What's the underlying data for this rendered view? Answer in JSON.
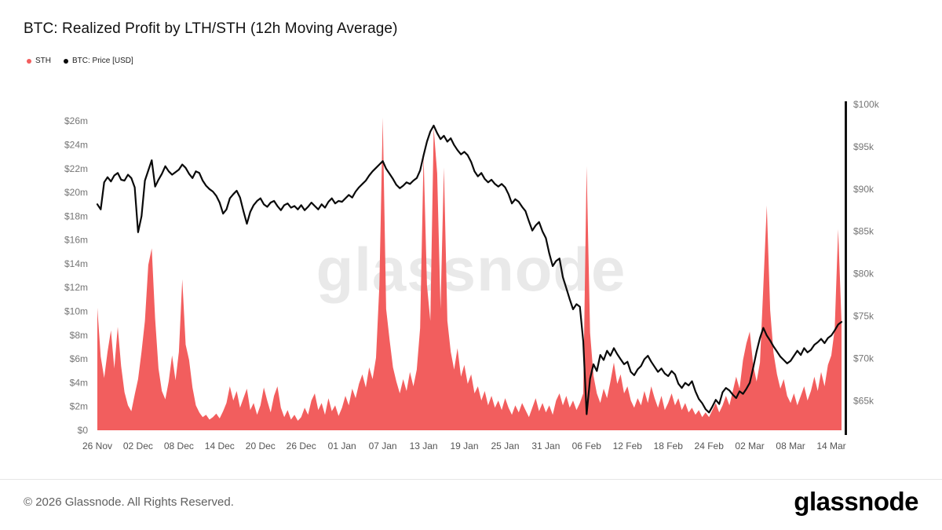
{
  "header": {
    "title": "BTC: Realized Profit by LTH/STH (12h Moving Average)"
  },
  "legend": [
    {
      "label": "STH",
      "color": "#f25e5e"
    },
    {
      "label": "BTC: Price [USD]",
      "color": "#0a0a0a"
    }
  ],
  "watermark": "glassnode",
  "footer": {
    "copyright": "© 2026 Glassnode. All Rights Reserved.",
    "brand": "glassnode"
  },
  "chart_data": {
    "type": "area+line",
    "title": "BTC: Realized Profit by LTH/STH (12h Moving Average)",
    "grid": false,
    "legend_position": "top-left",
    "x_tick_labels": [
      "26 Nov",
      "02 Dec",
      "08 Dec",
      "14 Dec",
      "20 Dec",
      "26 Dec",
      "01 Jan",
      "07 Jan",
      "13 Jan",
      "19 Jan",
      "25 Jan",
      "31 Jan",
      "06 Feb",
      "12 Feb",
      "18 Feb",
      "24 Feb",
      "02 Mar",
      "08 Mar",
      "14 Mar"
    ],
    "points_per_day": 2,
    "left_axis": {
      "ticks": [
        "$0",
        "$2m",
        "$4m",
        "$6m",
        "$8m",
        "$10m",
        "$12m",
        "$14m",
        "$16m",
        "$18m",
        "$20m",
        "$22m",
        "$24m",
        "$26m"
      ],
      "tick_values_m": [
        0,
        2,
        4,
        6,
        8,
        10,
        12,
        14,
        16,
        18,
        20,
        22,
        24,
        26
      ],
      "min_m": 0,
      "max_m": 27.4
    },
    "right_axis": {
      "ticks": [
        "$65k",
        "$70k",
        "$75k",
        "$80k",
        "$85k",
        "$90k",
        "$95k",
        "$100k"
      ],
      "tick_values_k": [
        65,
        70,
        75,
        80,
        85,
        90,
        95,
        100
      ],
      "min_k": 61.5,
      "max_k": 100
    },
    "series": [
      {
        "name": "STH",
        "type": "area",
        "axis": "left",
        "unit": "USD millions",
        "color": "#f25e5e",
        "values": [
          10.3,
          6.2,
          4.4,
          6.6,
          8.4,
          5.2,
          8.7,
          5.4,
          3.2,
          2.1,
          1.6,
          3.0,
          4.3,
          6.6,
          9.2,
          13.9,
          15.3,
          9.4,
          5.2,
          3.3,
          2.6,
          4.1,
          6.3,
          4.2,
          6.6,
          12.7,
          7.2,
          5.9,
          3.6,
          2.1,
          1.5,
          1.1,
          1.3,
          0.9,
          1.1,
          1.4,
          1.0,
          1.6,
          2.3,
          3.7,
          2.5,
          3.3,
          1.9,
          2.7,
          3.5,
          1.7,
          2.3,
          1.3,
          2.1,
          3.6,
          2.5,
          1.5,
          2.9,
          3.7,
          1.9,
          1.1,
          1.7,
          0.9,
          1.3,
          0.8,
          1.1,
          1.9,
          1.3,
          2.5,
          3.1,
          1.7,
          2.3,
          1.3,
          2.7,
          1.6,
          2.1,
          1.2,
          1.9,
          2.9,
          2.1,
          3.5,
          2.7,
          3.9,
          4.7,
          3.6,
          5.3,
          4.3,
          6.1,
          12.2,
          26.3,
          10.2,
          7.6,
          5.3,
          4.1,
          3.1,
          4.3,
          3.3,
          4.9,
          3.7,
          5.1,
          8.6,
          23.1,
          12.2,
          9.2,
          25.4,
          21.6,
          10.2,
          22.1,
          9.2,
          6.6,
          5.1,
          6.9,
          4.5,
          5.5,
          3.9,
          4.7,
          3.1,
          3.7,
          2.5,
          3.3,
          2.1,
          2.9,
          1.9,
          2.5,
          1.7,
          2.7,
          1.9,
          1.3,
          2.1,
          1.5,
          2.3,
          1.7,
          1.1,
          1.9,
          2.7,
          1.6,
          2.3,
          1.5,
          2.1,
          1.3,
          2.5,
          3.1,
          2.1,
          2.9,
          1.9,
          2.5,
          1.7,
          2.3,
          3.1,
          22.2,
          8.2,
          4.6,
          3.1,
          2.3,
          3.5,
          2.7,
          4.1,
          5.7,
          3.9,
          4.7,
          3.1,
          3.7,
          2.5,
          1.9,
          2.7,
          2.1,
          3.3,
          2.3,
          3.7,
          2.7,
          1.9,
          2.9,
          1.7,
          2.3,
          3.1,
          2.1,
          2.7,
          1.7,
          2.3,
          1.5,
          1.9,
          1.3,
          1.7,
          1.1,
          1.5,
          1.1,
          1.7,
          2.3,
          1.5,
          2.1,
          2.9,
          2.1,
          3.3,
          4.5,
          3.5,
          5.9,
          7.3,
          8.3,
          5.5,
          4.1,
          5.7,
          12.1,
          18.9,
          10.1,
          6.5,
          4.7,
          3.5,
          4.3,
          2.9,
          2.3,
          3.1,
          2.1,
          2.9,
          3.7,
          2.5,
          3.3,
          4.5,
          3.3,
          4.9,
          3.7,
          5.5,
          6.3,
          8.5,
          16.9,
          9.1
        ]
      },
      {
        "name": "BTC: Price [USD]",
        "type": "line",
        "axis": "right",
        "unit": "USD thousands",
        "color": "#0a0a0a",
        "values": [
          88.2,
          87.6,
          90.8,
          91.4,
          90.9,
          91.6,
          91.9,
          91.1,
          91.0,
          91.7,
          91.3,
          90.2,
          84.9,
          86.8,
          91.0,
          92.2,
          93.4,
          90.3,
          91.1,
          91.8,
          92.7,
          92.1,
          91.7,
          92.0,
          92.3,
          92.9,
          92.5,
          91.8,
          91.3,
          92.1,
          91.9,
          91.0,
          90.4,
          90.0,
          89.7,
          89.2,
          88.4,
          87.1,
          87.6,
          88.9,
          89.4,
          89.8,
          89.0,
          87.4,
          85.9,
          87.3,
          88.1,
          88.6,
          88.9,
          88.2,
          87.9,
          88.4,
          88.6,
          88.0,
          87.5,
          88.1,
          88.3,
          87.8,
          88.0,
          87.6,
          88.1,
          87.5,
          87.9,
          88.4,
          88.0,
          87.6,
          88.2,
          87.8,
          88.5,
          88.9,
          88.3,
          88.6,
          88.5,
          88.9,
          89.3,
          89.0,
          89.7,
          90.2,
          90.6,
          91.0,
          91.6,
          92.1,
          92.5,
          92.9,
          93.3,
          92.4,
          91.8,
          91.2,
          90.5,
          90.1,
          90.4,
          90.8,
          90.6,
          91.0,
          91.3,
          92.2,
          94.0,
          95.6,
          96.8,
          97.5,
          96.6,
          95.9,
          96.3,
          95.6,
          96.0,
          95.2,
          94.6,
          94.1,
          94.4,
          94.0,
          93.2,
          92.1,
          91.5,
          91.9,
          91.2,
          90.8,
          91.1,
          90.6,
          90.3,
          90.6,
          90.2,
          89.4,
          88.3,
          88.8,
          88.5,
          87.9,
          87.4,
          86.2,
          85.1,
          85.7,
          86.1,
          85.0,
          84.2,
          82.4,
          80.9,
          81.5,
          81.8,
          79.6,
          78.3,
          77.0,
          75.8,
          76.4,
          76.1,
          72.0,
          63.4,
          67.6,
          69.3,
          68.5,
          70.4,
          69.8,
          70.9,
          70.3,
          71.2,
          70.5,
          69.9,
          69.3,
          69.6,
          68.4,
          68.0,
          68.7,
          69.1,
          69.9,
          70.3,
          69.6,
          69.0,
          68.4,
          68.8,
          68.2,
          67.9,
          68.5,
          68.1,
          67.0,
          66.5,
          67.1,
          66.8,
          67.3,
          66.1,
          65.2,
          64.7,
          64.0,
          63.6,
          64.3,
          65.1,
          64.6,
          66.0,
          66.5,
          66.2,
          65.7,
          65.3,
          66.1,
          65.8,
          66.4,
          67.1,
          68.9,
          70.8,
          72.4,
          73.6,
          72.7,
          72.1,
          71.4,
          70.8,
          70.2,
          69.8,
          69.4,
          69.7,
          70.3,
          70.9,
          70.4,
          71.2,
          70.7,
          71.0,
          71.6,
          71.9,
          72.3,
          71.8,
          72.4,
          72.7,
          73.3,
          74.0,
          74.3
        ]
      }
    ]
  }
}
